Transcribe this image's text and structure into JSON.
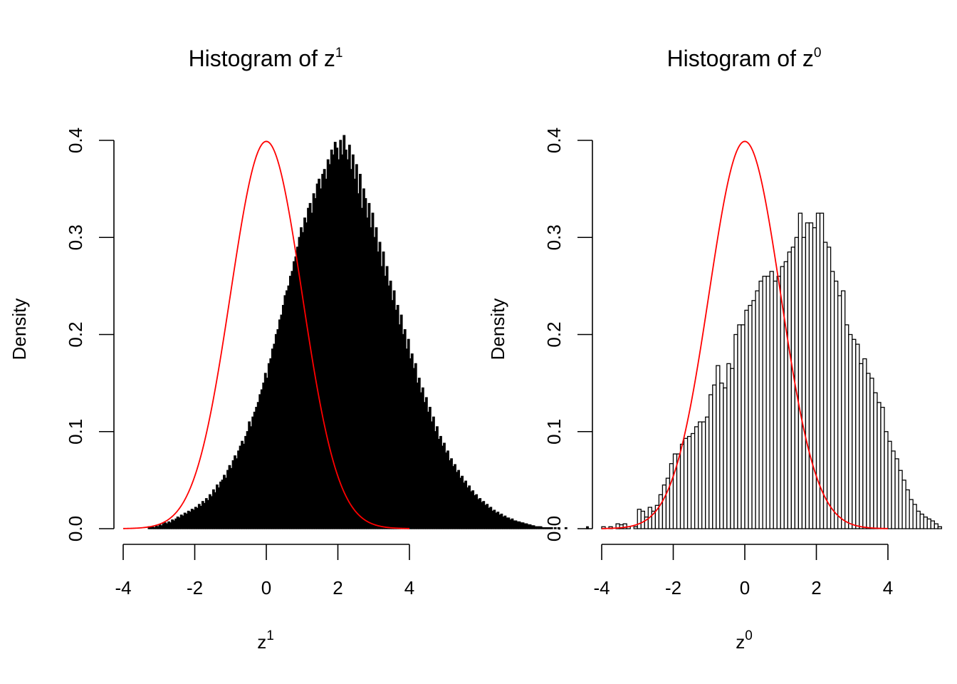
{
  "chart_data": [
    {
      "type": "histogram",
      "title_main": "Histogram of z",
      "title_sup": "1",
      "xlabel_main": "z",
      "xlabel_sup": "1",
      "ylabel": "Density",
      "xlim": [
        -4,
        4
      ],
      "ylim": [
        0,
        0.4
      ],
      "xticks": [
        "-4",
        "-2",
        "0",
        "2",
        "4"
      ],
      "yticks": [
        "0.0",
        "0.1",
        "0.2",
        "0.3",
        "0.4"
      ],
      "bar_fill": "#000000",
      "bin_start": -3.3,
      "bin_width": 0.05,
      "densities": [
        0.002,
        0.001,
        0.002,
        0.001,
        0.003,
        0.002,
        0.004,
        0.003,
        0.005,
        0.006,
        0.005,
        0.007,
        0.006,
        0.009,
        0.008,
        0.01,
        0.012,
        0.011,
        0.014,
        0.013,
        0.016,
        0.015,
        0.018,
        0.017,
        0.02,
        0.019,
        0.022,
        0.021,
        0.025,
        0.023,
        0.028,
        0.026,
        0.031,
        0.029,
        0.035,
        0.033,
        0.04,
        0.037,
        0.045,
        0.042,
        0.048,
        0.05,
        0.055,
        0.052,
        0.06,
        0.065,
        0.062,
        0.07,
        0.075,
        0.072,
        0.08,
        0.085,
        0.09,
        0.087,
        0.095,
        0.1,
        0.11,
        0.105,
        0.115,
        0.12,
        0.125,
        0.13,
        0.138,
        0.143,
        0.15,
        0.16,
        0.155,
        0.17,
        0.175,
        0.185,
        0.19,
        0.2,
        0.205,
        0.215,
        0.22,
        0.23,
        0.24,
        0.245,
        0.25,
        0.26,
        0.265,
        0.275,
        0.28,
        0.29,
        0.3,
        0.31,
        0.305,
        0.32,
        0.315,
        0.33,
        0.335,
        0.325,
        0.345,
        0.34,
        0.355,
        0.36,
        0.35,
        0.365,
        0.37,
        0.36,
        0.38,
        0.375,
        0.39,
        0.385,
        0.398,
        0.392,
        0.38,
        0.4,
        0.385,
        0.405,
        0.39,
        0.38,
        0.395,
        0.37,
        0.385,
        0.36,
        0.375,
        0.345,
        0.365,
        0.33,
        0.35,
        0.34,
        0.32,
        0.335,
        0.31,
        0.325,
        0.3,
        0.31,
        0.285,
        0.295,
        0.27,
        0.285,
        0.26,
        0.27,
        0.25,
        0.255,
        0.235,
        0.245,
        0.225,
        0.23,
        0.21,
        0.22,
        0.2,
        0.205,
        0.185,
        0.195,
        0.175,
        0.18,
        0.165,
        0.17,
        0.15,
        0.155,
        0.14,
        0.145,
        0.13,
        0.135,
        0.12,
        0.125,
        0.11,
        0.115,
        0.1,
        0.105,
        0.092,
        0.095,
        0.085,
        0.088,
        0.078,
        0.08,
        0.07,
        0.072,
        0.064,
        0.066,
        0.058,
        0.06,
        0.052,
        0.054,
        0.047,
        0.049,
        0.042,
        0.044,
        0.038,
        0.039,
        0.034,
        0.035,
        0.03,
        0.031,
        0.027,
        0.028,
        0.024,
        0.025,
        0.021,
        0.022,
        0.018,
        0.019,
        0.016,
        0.017,
        0.014,
        0.015,
        0.012,
        0.013,
        0.011,
        0.011,
        0.009,
        0.01,
        0.008,
        0.008,
        0.007,
        0.007,
        0.006,
        0.006,
        0.005,
        0.005,
        0.004,
        0.004,
        0.003,
        0.003,
        0.002,
        0.002,
        0.002,
        0.002,
        0.001,
        0.001,
        0.001,
        0.001,
        0.001,
        0.001,
        0.0,
        0.001,
        0.0,
        0.001,
        0.0,
        0.0,
        0.0,
        0.001,
        0.0,
        0.0,
        0.0,
        0.0,
        0.0,
        0.0,
        0.0,
        0.0,
        0.0,
        0.0,
        0.0,
        0.002
      ],
      "curve_color": "#ff0000"
    },
    {
      "type": "histogram",
      "title_main": "Histogram of z",
      "title_sup": "0",
      "xlabel_main": "z",
      "xlabel_sup": "0",
      "ylabel": "Density",
      "xlim": [
        -4,
        4
      ],
      "ylim": [
        0,
        0.4
      ],
      "xticks": [
        "-4",
        "-2",
        "0",
        "2",
        "4"
      ],
      "yticks": [
        "0.0",
        "0.1",
        "0.2",
        "0.3",
        "0.4"
      ],
      "bar_fill": "#ffffff",
      "bin_start": -4.0,
      "bin_width": 0.1,
      "densities": [
        0.002,
        0.0,
        0.002,
        0.0,
        0.005,
        0.004,
        0.005,
        0.002,
        0.0,
        0.002,
        0.02,
        0.018,
        0.012,
        0.022,
        0.018,
        0.024,
        0.035,
        0.045,
        0.052,
        0.067,
        0.077,
        0.077,
        0.087,
        0.093,
        0.095,
        0.098,
        0.105,
        0.11,
        0.11,
        0.115,
        0.138,
        0.148,
        0.168,
        0.15,
        0.145,
        0.17,
        0.165,
        0.2,
        0.21,
        0.21,
        0.225,
        0.23,
        0.235,
        0.245,
        0.255,
        0.26,
        0.26,
        0.265,
        0.255,
        0.26,
        0.27,
        0.275,
        0.285,
        0.29,
        0.3,
        0.325,
        0.3,
        0.315,
        0.315,
        0.31,
        0.325,
        0.325,
        0.295,
        0.29,
        0.265,
        0.255,
        0.24,
        0.245,
        0.21,
        0.2,
        0.195,
        0.19,
        0.17,
        0.175,
        0.16,
        0.155,
        0.14,
        0.13,
        0.125,
        0.1,
        0.09,
        0.08,
        0.072,
        0.06,
        0.05,
        0.04,
        0.03,
        0.025,
        0.018,
        0.015,
        0.012,
        0.01,
        0.008,
        0.005,
        0.002
      ],
      "curve_color": "#ff0000"
    }
  ]
}
